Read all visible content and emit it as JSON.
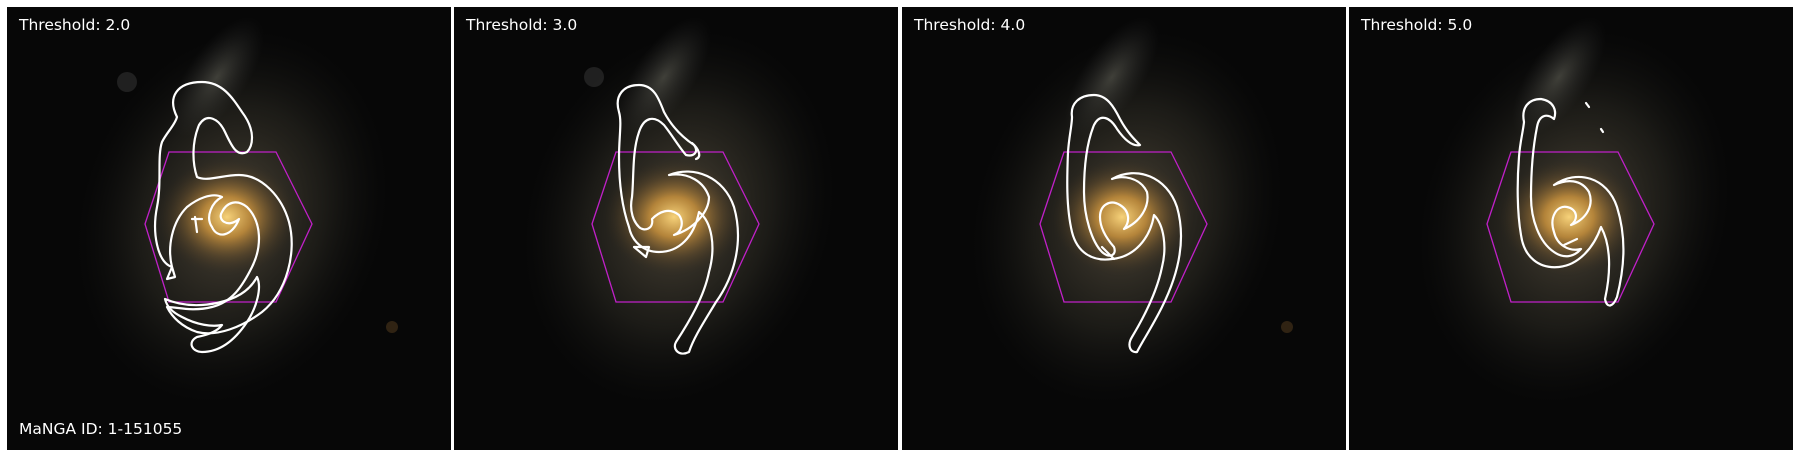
{
  "figure": {
    "panels": [
      {
        "threshold_label": "Threshold: 2.0"
      },
      {
        "threshold_label": "Threshold: 3.0"
      },
      {
        "threshold_label": "Threshold: 4.0"
      },
      {
        "threshold_label": "Threshold: 5.0"
      }
    ],
    "manga_id_label": "MaNGA ID: 1-151055"
  },
  "colors": {
    "background": "#070707",
    "contour": "#ffffff",
    "hexagon": "#c020c8",
    "galaxy_core": "#e8b85a",
    "galaxy_halo": "#8a7a60"
  }
}
